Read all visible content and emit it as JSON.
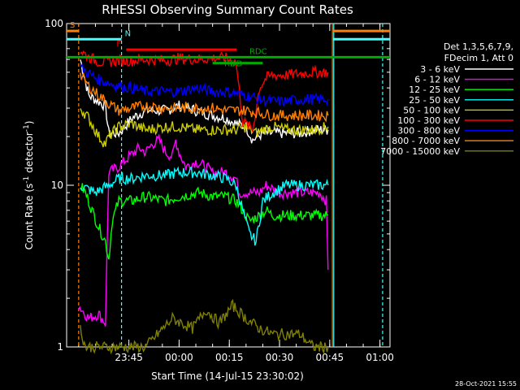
{
  "chart_data": {
    "type": "line",
    "title": "RHESSI Observing Summary Count Rates",
    "xlabel": "Start Time (14-Jul-15 23:30:02)",
    "ylabel": "Count Rate (s⁻¹ detector⁻¹)",
    "ylabel_main": "Count Rate (s",
    "ylabel_mid": " detector",
    "ylabel_end": ")",
    "ylabel_sup": "-1",
    "y_scale": "log",
    "ylim": [
      1,
      100
    ],
    "xlim_minutes": [
      -3.6,
      93.0
    ],
    "x_ticks": [
      {
        "t": 15,
        "label": "23:45"
      },
      {
        "t": 30,
        "label": "00:00"
      },
      {
        "t": 45,
        "label": "00:15"
      },
      {
        "t": 60,
        "label": "00:30"
      },
      {
        "t": 75,
        "label": "00:45"
      },
      {
        "t": 90,
        "label": "01:00"
      }
    ],
    "y_ticks": [
      {
        "v": 1,
        "label": "1"
      },
      {
        "v": 10,
        "label": "10"
      },
      {
        "v": 100,
        "label": "100"
      }
    ],
    "legend_header": [
      "Det 1,3,5,6,7,9,",
      "FDecim 1, Att 0"
    ],
    "series": [
      {
        "name": "3 - 6 keV",
        "color": "#ffffff",
        "points": [
          [
            0.5,
            60
          ],
          [
            3,
            36
          ],
          [
            8,
            31
          ],
          [
            9,
            21
          ],
          [
            12,
            21
          ],
          [
            16,
            26
          ],
          [
            20,
            29
          ],
          [
            26,
            29
          ],
          [
            30,
            31
          ],
          [
            35,
            29
          ],
          [
            40,
            27
          ],
          [
            44,
            26
          ],
          [
            47,
            24
          ],
          [
            50,
            23
          ],
          [
            52,
            19
          ],
          [
            55,
            21
          ],
          [
            60,
            21
          ],
          [
            66,
            21
          ],
          [
            70,
            22
          ],
          [
            73,
            22
          ],
          [
            74.5,
            22
          ]
        ]
      },
      {
        "name": "6 - 12 keV",
        "color": "#ff00ff",
        "points": [
          [
            0,
            1.8
          ],
          [
            3,
            1.5
          ],
          [
            6,
            1.6
          ],
          [
            8,
            1.4
          ],
          [
            9,
            12
          ],
          [
            12,
            13
          ],
          [
            15,
            15
          ],
          [
            18,
            17
          ],
          [
            20,
            16
          ],
          [
            22,
            18
          ],
          [
            24,
            19
          ],
          [
            26,
            16
          ],
          [
            28,
            15
          ],
          [
            29,
            19
          ],
          [
            30,
            16
          ],
          [
            32,
            13
          ],
          [
            35,
            14
          ],
          [
            38,
            13
          ],
          [
            40,
            12
          ],
          [
            44,
            12
          ],
          [
            47,
            11
          ],
          [
            48,
            9
          ],
          [
            50,
            9
          ],
          [
            54,
            9
          ],
          [
            56,
            10
          ],
          [
            60,
            9
          ],
          [
            66,
            9
          ],
          [
            70,
            9
          ],
          [
            72,
            9
          ],
          [
            74,
            8
          ],
          [
            74.5,
            3
          ]
        ]
      },
      {
        "name": "12 - 25 keV",
        "color": "#00ff00",
        "points": [
          [
            0.5,
            10
          ],
          [
            2,
            9
          ],
          [
            4,
            7
          ],
          [
            6,
            5.5
          ],
          [
            8,
            4.5
          ],
          [
            9,
            3.5
          ],
          [
            10,
            6
          ],
          [
            12,
            8
          ],
          [
            16,
            8
          ],
          [
            20,
            8.5
          ],
          [
            26,
            8
          ],
          [
            30,
            8.5
          ],
          [
            36,
            9
          ],
          [
            40,
            8.5
          ],
          [
            44,
            8.5
          ],
          [
            47,
            8
          ],
          [
            49,
            7
          ],
          [
            51,
            6
          ],
          [
            54,
            6.5
          ],
          [
            56,
            7
          ],
          [
            58,
            6.5
          ],
          [
            62,
            6.5
          ],
          [
            66,
            6.5
          ],
          [
            70,
            6.5
          ],
          [
            74.5,
            6.5
          ]
        ]
      },
      {
        "name": "25 - 50 keV",
        "color": "#00ffff",
        "points": [
          [
            0.5,
            10
          ],
          [
            5,
            9
          ],
          [
            9,
            10
          ],
          [
            12,
            11
          ],
          [
            16,
            11
          ],
          [
            20,
            11.5
          ],
          [
            26,
            11.5
          ],
          [
            30,
            12
          ],
          [
            35,
            12
          ],
          [
            40,
            11.5
          ],
          [
            44,
            11
          ],
          [
            47,
            10
          ],
          [
            49,
            7
          ],
          [
            51,
            5
          ],
          [
            53,
            4.5
          ],
          [
            55,
            8
          ],
          [
            58,
            9
          ],
          [
            62,
            10
          ],
          [
            66,
            10
          ],
          [
            70,
            10
          ],
          [
            74.5,
            10
          ]
        ]
      },
      {
        "name": "50 - 100 keV",
        "color": "#cccc00",
        "points": [
          [
            0.5,
            30
          ],
          [
            3,
            26
          ],
          [
            6,
            20
          ],
          [
            8,
            18
          ],
          [
            9,
            20
          ],
          [
            12,
            23
          ],
          [
            16,
            24
          ],
          [
            20,
            22
          ],
          [
            26,
            23
          ],
          [
            30,
            23
          ],
          [
            35,
            22
          ],
          [
            40,
            22
          ],
          [
            44,
            22
          ],
          [
            47,
            22
          ],
          [
            50,
            23
          ],
          [
            53,
            21
          ],
          [
            55,
            22
          ],
          [
            58,
            23
          ],
          [
            62,
            22
          ],
          [
            66,
            22
          ],
          [
            70,
            22
          ],
          [
            74.5,
            23
          ]
        ]
      },
      {
        "name": "100 - 300 keV",
        "color": "#ff0000",
        "points": [
          [
            0.5,
            68
          ],
          [
            3,
            62
          ],
          [
            6,
            58
          ],
          [
            9,
            58
          ],
          [
            12,
            59
          ],
          [
            16,
            59
          ],
          [
            20,
            60
          ],
          [
            26,
            59
          ],
          [
            30,
            61
          ],
          [
            35,
            60
          ],
          [
            40,
            61
          ],
          [
            44,
            61
          ],
          [
            47,
            58
          ],
          [
            49,
            25
          ],
          [
            52,
            22
          ],
          [
            54,
            40
          ],
          [
            56,
            46
          ],
          [
            58,
            48
          ],
          [
            62,
            48
          ],
          [
            66,
            49
          ],
          [
            70,
            50
          ],
          [
            74.5,
            50
          ]
        ]
      },
      {
        "name": "300 - 800 keV",
        "color": "#0000ff",
        "points": [
          [
            0.5,
            54
          ],
          [
            3,
            49
          ],
          [
            6,
            45
          ],
          [
            9,
            43
          ],
          [
            12,
            41
          ],
          [
            16,
            40
          ],
          [
            20,
            38
          ],
          [
            26,
            38
          ],
          [
            30,
            38
          ],
          [
            35,
            40
          ],
          [
            40,
            38
          ],
          [
            44,
            38
          ],
          [
            47,
            37
          ],
          [
            50,
            36
          ],
          [
            54,
            34
          ],
          [
            58,
            33
          ],
          [
            62,
            33
          ],
          [
            66,
            34
          ],
          [
            70,
            34
          ],
          [
            74.5,
            34
          ]
        ]
      },
      {
        "name": "800 - 7000 keV",
        "color": "#ff8000",
        "points": [
          [
            0.5,
            48
          ],
          [
            3,
            41
          ],
          [
            6,
            36
          ],
          [
            9,
            32
          ],
          [
            12,
            29
          ],
          [
            16,
            30
          ],
          [
            20,
            31
          ],
          [
            26,
            30
          ],
          [
            30,
            30
          ],
          [
            35,
            30
          ],
          [
            40,
            30
          ],
          [
            44,
            29
          ],
          [
            47,
            29
          ],
          [
            50,
            29
          ],
          [
            54,
            28
          ],
          [
            58,
            27
          ],
          [
            62,
            27
          ],
          [
            66,
            27
          ],
          [
            70,
            27
          ],
          [
            74.5,
            27
          ]
        ]
      },
      {
        "name": "7000 - 15000 keV",
        "color": "#808000",
        "points": [
          [
            0.5,
            1.3
          ],
          [
            2,
            1.0
          ],
          [
            8,
            1.0
          ],
          [
            20,
            1.0
          ],
          [
            28,
            1.5
          ],
          [
            34,
            1.3
          ],
          [
            38,
            1.7
          ],
          [
            42,
            1.4
          ],
          [
            46,
            1.8
          ],
          [
            50,
            1.5
          ],
          [
            54,
            1.3
          ],
          [
            58,
            1.2
          ],
          [
            62,
            1.2
          ],
          [
            66,
            1.2
          ],
          [
            70,
            1.0
          ],
          [
            74.5,
            1.0
          ]
        ]
      }
    ],
    "flag_bars": [
      {
        "label": "S",
        "color": "#ff8000",
        "t0": -3.6,
        "t1": 0,
        "level": 90
      },
      {
        "label": "N",
        "color": "#44ffff",
        "t0": -3.6,
        "t1": 12.8,
        "level": 80
      },
      {
        "label": "F",
        "color": "#ff0000",
        "t0": 14.2,
        "t1": 47.2,
        "level": 69
      },
      {
        "label": "RDD",
        "color": "#00aa00",
        "t0": 40,
        "t1": 55,
        "level": 57
      },
      {
        "label": "RDC",
        "color": "#00aa00",
        "t0": -3.6,
        "t1": 93,
        "level": 62
      }
    ],
    "right_bars": [
      {
        "color": "#ff8000",
        "t0": 76,
        "t1": 93,
        "level": 90
      },
      {
        "color": "#44ffff",
        "t0": 76,
        "t1": 93,
        "level": 80
      }
    ],
    "vlines": [
      {
        "t": 0,
        "color": "#ff8000",
        "dashed": true
      },
      {
        "t": 12.8,
        "color": "#44ffff",
        "dashed": true
      },
      {
        "t": 75.8,
        "color": "#ff8000",
        "dashed": false
      },
      {
        "t": 76.2,
        "color": "#44ffff",
        "dashed": false
      },
      {
        "t": 90.8,
        "color": "#44ffff",
        "dashed": true
      }
    ],
    "footer": "28-Oct-2021 15:55"
  }
}
